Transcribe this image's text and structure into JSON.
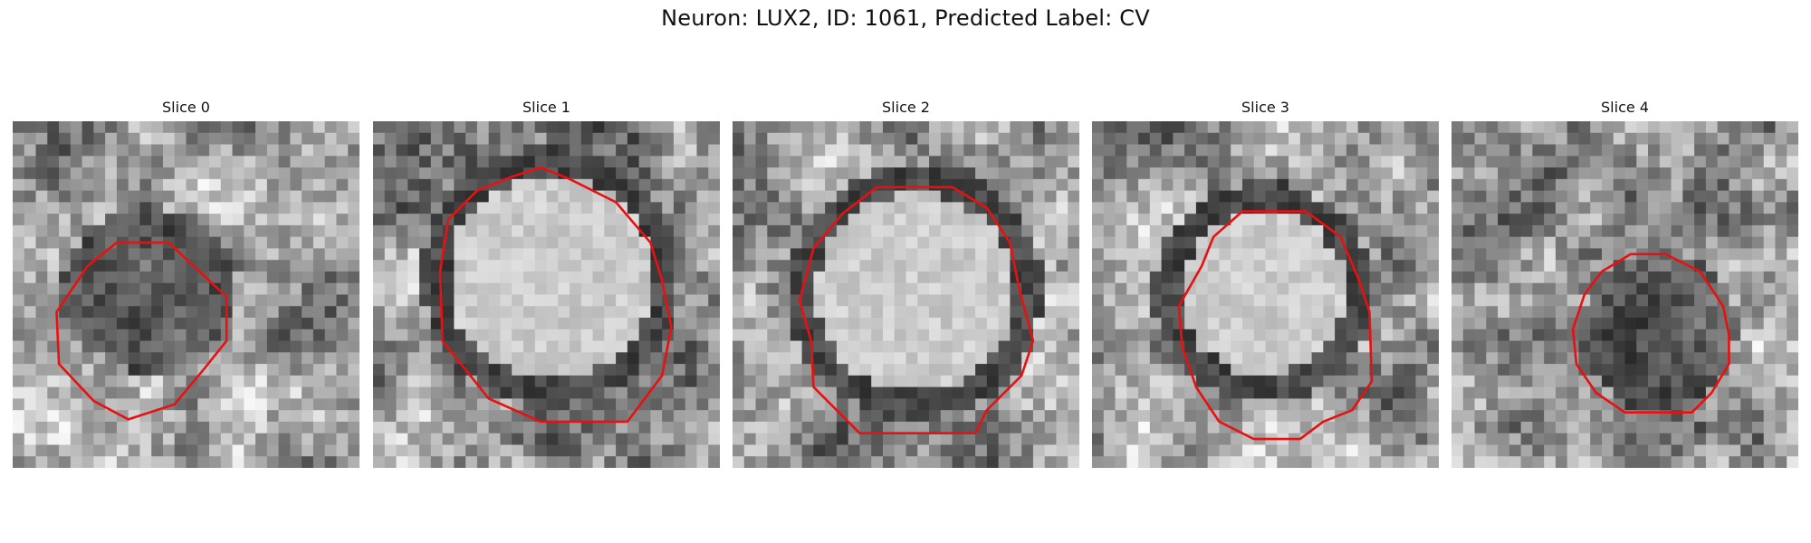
{
  "figure": {
    "title": "Neuron: LUX2, ID: 1061, Predicted Label: CV",
    "outline_color": "#e81010",
    "panels": [
      {
        "title": "Slice 0",
        "content": "dark"
      },
      {
        "title": "Slice 1",
        "content": "bright"
      },
      {
        "title": "Slice 2",
        "content": "bright"
      },
      {
        "title": "Slice 3",
        "content": "bright"
      },
      {
        "title": "Slice 4",
        "content": "dark"
      }
    ]
  }
}
